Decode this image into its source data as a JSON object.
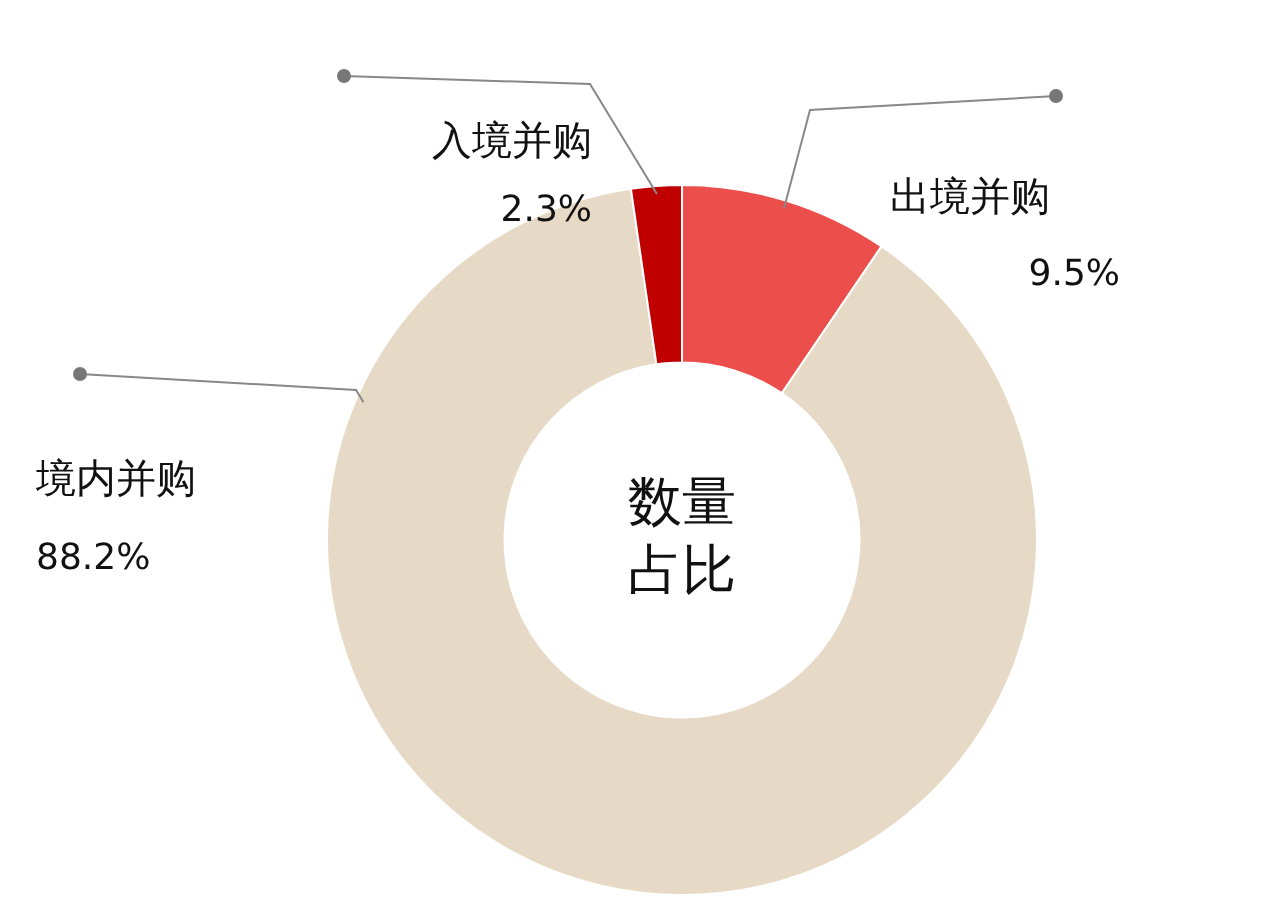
{
  "chart_data": {
    "type": "donut",
    "title": "数量占比",
    "categories": [
      "出境并购",
      "境内并购",
      "入境并购"
    ],
    "values": [
      9.5,
      88.2,
      2.3
    ],
    "colors": [
      "#eb4e4b",
      "#e6dac6",
      "#c00000"
    ],
    "value_labels": [
      "9.5%",
      "88.2%",
      "2.3%"
    ],
    "legend": false
  }
}
